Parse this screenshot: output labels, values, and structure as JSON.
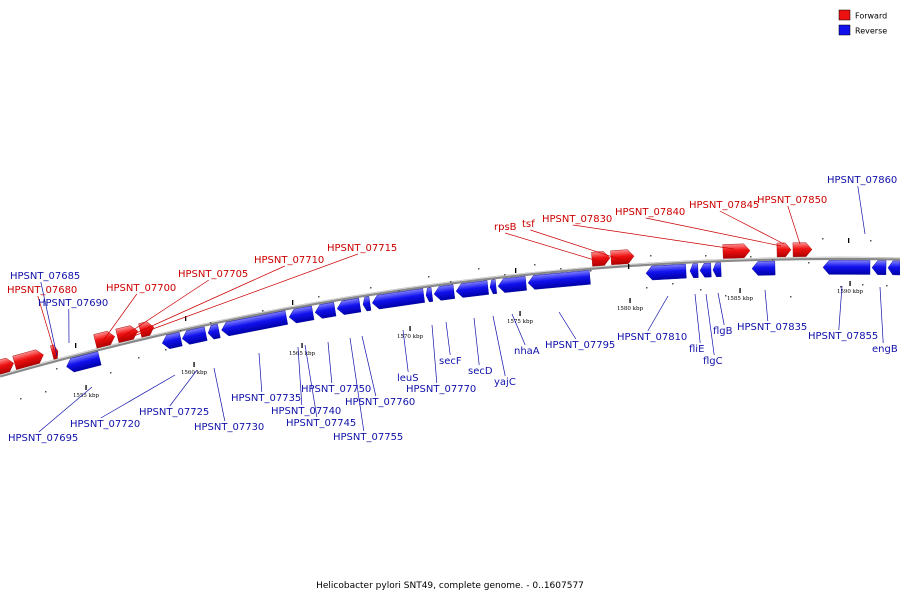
{
  "legend": {
    "forward": {
      "label": "Forward",
      "color": "#ee1111"
    },
    "reverse": {
      "label": "Reverse",
      "color": "#1111ee"
    }
  },
  "caption": "Helicobacter pylori SNT49, complete genome. - 0..1607577",
  "ticks": [
    "1555 kbp",
    "1560 kbp",
    "1565 kbp",
    "1570 kbp",
    "1575 kbp",
    "1580 kbp",
    "1585 kbp",
    "1590 kbp"
  ],
  "genes": {
    "forward": [
      "HPSNT_07680",
      "HPSNT_07700",
      "HPSNT_07705",
      "HPSNT_07710",
      "HPSNT_07715",
      "rpsB",
      "tsf",
      "HPSNT_07830",
      "HPSNT_07840",
      "HPSNT_07845",
      "HPSNT_07850"
    ],
    "reverse": [
      "HPSNT_07685",
      "HPSNT_07690",
      "HPSNT_07695",
      "HPSNT_07720",
      "HPSNT_07725",
      "HPSNT_07730",
      "HPSNT_07735",
      "HPSNT_07740",
      "HPSNT_07745",
      "HPSNT_07750",
      "HPSNT_07755",
      "HPSNT_07760",
      "leuS",
      "HPSNT_07770",
      "secF",
      "secD",
      "yajC",
      "nhaA",
      "HPSNT_07795",
      "HPSNT_07810",
      "fliE",
      "flgC",
      "flgB",
      "HPSNT_07835",
      "HPSNT_07855",
      "HPSNT_07860",
      "engB"
    ]
  }
}
